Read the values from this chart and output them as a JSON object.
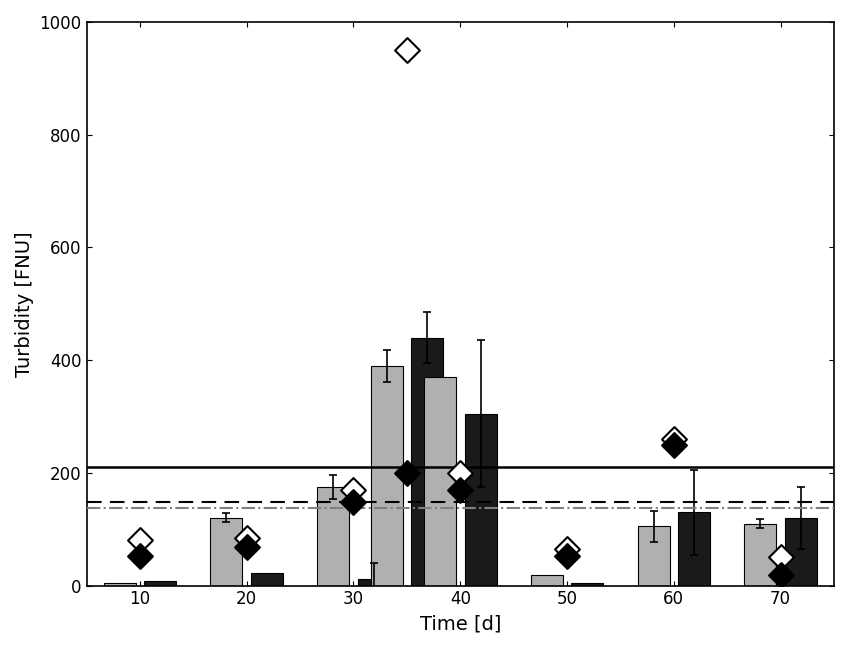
{
  "time_points": [
    10,
    20,
    30,
    35,
    40,
    50,
    60,
    70
  ],
  "bar_width": 3.0,
  "gray_bars": [
    5,
    120,
    175,
    390,
    370,
    18,
    105,
    110
  ],
  "black_bars": [
    8,
    22,
    12,
    440,
    305,
    5,
    130,
    120
  ],
  "gray_bar_errors": [
    0,
    8,
    22,
    28,
    0,
    0,
    28,
    8
  ],
  "black_bar_errors": [
    0,
    0,
    28,
    45,
    130,
    0,
    75,
    55
  ],
  "diamond_white_values": [
    80,
    85,
    170,
    950,
    200,
    65,
    260,
    50
  ],
  "diamond_black_values": [
    52,
    68,
    148,
    200,
    170,
    52,
    250,
    18
  ],
  "hline_solid": 210,
  "hline_dashed_black": 148,
  "hline_dashed_gray": 138,
  "ylabel": "Turbidity [FNU]",
  "xlabel": "Time [d]",
  "ylim": [
    0,
    1000
  ],
  "yticks": [
    0,
    200,
    400,
    600,
    800,
    1000
  ],
  "xticks": [
    10,
    20,
    30,
    40,
    50,
    60,
    70
  ],
  "gray_color": "#b0b0b0",
  "black_color": "#1a1a1a",
  "background_color": "#ffffff"
}
